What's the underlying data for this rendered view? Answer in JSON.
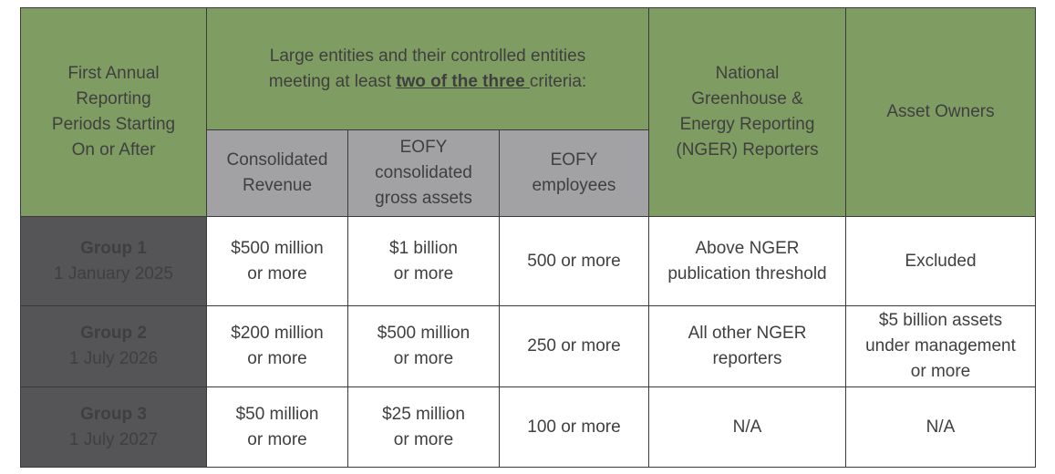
{
  "header": {
    "first_col": [
      "First Annual",
      "Reporting",
      "Periods Starting",
      "On or After"
    ],
    "large_entities": {
      "line1": "Large entities and their controlled entities",
      "line2_before": "meeting at least ",
      "line2_emph": "two of the three ",
      "line2_after": "criteria:"
    },
    "nger": [
      "National",
      "Greenhouse &",
      "Energy Reporting",
      "(NGER) Reporters"
    ],
    "asset_owners": "Asset Owners",
    "sub": {
      "revenue": [
        "Consolidated",
        "Revenue"
      ],
      "assets": [
        "EOFY",
        "consolidated",
        "gross assets"
      ],
      "employees": [
        "EOFY",
        "employees"
      ]
    }
  },
  "rows": [
    {
      "group": "Group 1",
      "date": "1 January 2025",
      "revenue": [
        "$500 million",
        "or more"
      ],
      "assets": [
        "$1 billion",
        "or more"
      ],
      "employees": "500 or more",
      "nger": [
        "Above NGER",
        "publication threshold"
      ],
      "asset_owners": [
        "Excluded"
      ]
    },
    {
      "group": "Group 2",
      "date": "1 July 2026",
      "revenue": [
        "$200 million",
        "or more"
      ],
      "assets": [
        "$500 million",
        "or more"
      ],
      "employees": "250 or more",
      "nger": [
        "All other NGER",
        "reporters"
      ],
      "asset_owners": [
        "$5 billion assets",
        "under management",
        "or more"
      ]
    },
    {
      "group": "Group 3",
      "date": "1 July 2027",
      "revenue": [
        "$50 million",
        "or more"
      ],
      "assets": [
        "$25 million",
        "or more"
      ],
      "employees": "100 or more",
      "nger": [
        "N/A"
      ],
      "asset_owners": [
        "N/A"
      ]
    }
  ],
  "colors": {
    "header_green": "#7f9d62",
    "subheader_grey": "#a2a2a4",
    "row_header_dark": "#555557",
    "border": "#3a3a3a",
    "body_text": "#3f3f3f"
  }
}
